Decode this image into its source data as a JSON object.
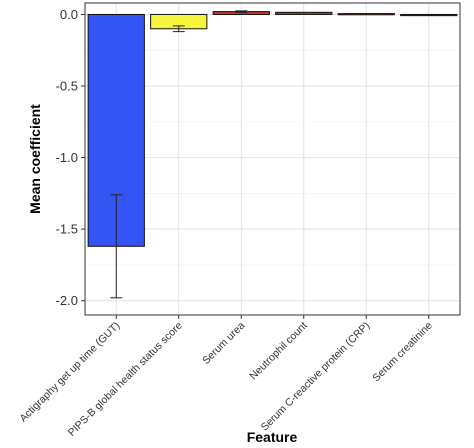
{
  "chart_data": {
    "type": "bar",
    "xlabel": "Feature",
    "ylabel": "Mean coefficient",
    "ylim": [
      -2.1,
      0.08
    ],
    "yticks": [
      0.0,
      -0.5,
      -1.0,
      -1.5,
      -2.0
    ],
    "ytick_labels": [
      "0.0",
      "-0.5",
      "-1.0",
      "-1.5",
      "-2.0"
    ],
    "grid": true,
    "legend": "none",
    "categories": [
      "Actigraphy get up time (GUT)",
      "PIPS-B global health status score",
      "Serum urea",
      "Neutrophil count",
      "Serum C-reactive protein (CRP)",
      "Serum creatinine"
    ],
    "values": [
      -1.62,
      -0.1,
      0.02,
      0.015,
      0.006,
      -0.002
    ],
    "error_low": [
      -1.98,
      -0.12,
      0.015,
      null,
      null,
      null
    ],
    "error_high": [
      -1.26,
      -0.08,
      0.025,
      null,
      null,
      null
    ],
    "colors": [
      "#3355f5",
      "#f5f53c",
      "#cc3322",
      "#cc3322",
      "#cc3322",
      "#cc3322"
    ]
  }
}
